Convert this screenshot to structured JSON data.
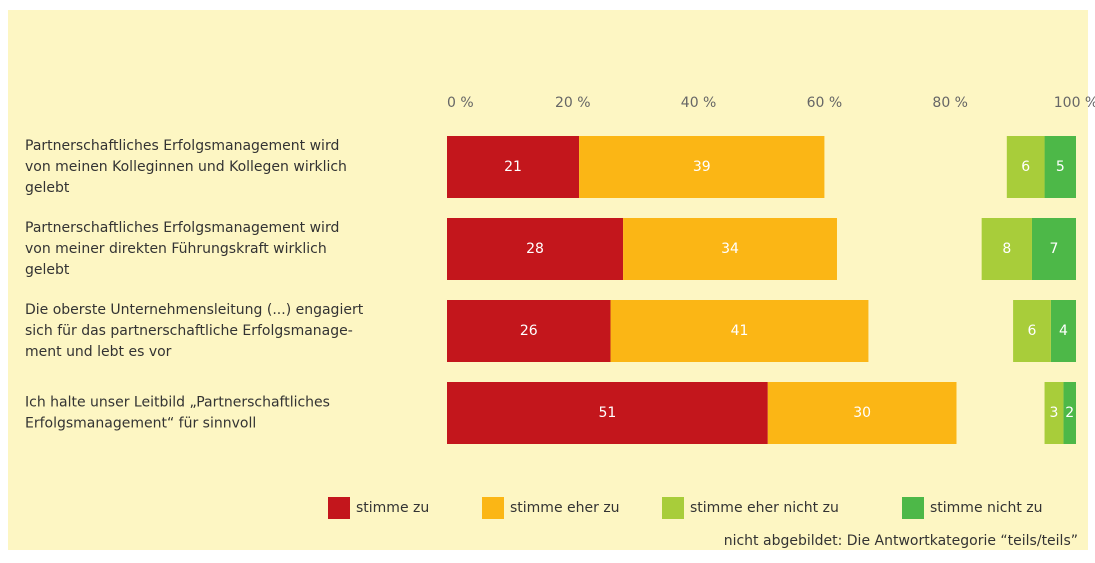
{
  "chart_data": {
    "type": "bar",
    "orientation": "horizontal",
    "stacked": true,
    "categories": [
      [
        "Partnerschaftliches Erfolgsmanagement wird",
        "von meinen Kolleginnen und Kollegen wirklich",
        "gelebt"
      ],
      [
        "Partnerschaftliches Erfolgsmanagement wird",
        "von meiner direkten Führungskraft wirklich",
        "gelebt"
      ],
      [
        "Die oberste Unternehmensleitung (...) engagiert",
        "sich für das partnerschaftliche Erfolgsmanage-",
        "ment und lebt es vor"
      ],
      [
        "Ich halte unser Leitbild „Partnerschaftliches",
        "Erfolgsmanagement“ für sinnvoll"
      ]
    ],
    "series": [
      {
        "name": "stimme zu",
        "color": "#c3161c",
        "anchor": "start",
        "values": [
          21,
          28,
          26,
          51
        ]
      },
      {
        "name": "stimme eher zu",
        "color": "#fbb615",
        "anchor": "start",
        "values": [
          39,
          34,
          41,
          30
        ]
      },
      {
        "name": "stimme eher nicht zu",
        "color": "#a8cd3a",
        "anchor": "end",
        "values": [
          6,
          8,
          6,
          3
        ]
      },
      {
        "name": "stimme nicht zu",
        "color": "#4db848",
        "anchor": "end",
        "values": [
          5,
          7,
          4,
          2
        ]
      }
    ],
    "xlim": [
      0,
      100
    ],
    "xticks": [
      {
        "value": 0,
        "label": "0 %"
      },
      {
        "value": 20,
        "label": "20 %"
      },
      {
        "value": 40,
        "label": "40 %"
      },
      {
        "value": 60,
        "label": "60 %"
      },
      {
        "value": 80,
        "label": "80 %"
      },
      {
        "value": 100,
        "label": "100 %"
      }
    ],
    "note": "nicht abgebildet: Die Antwortkategorie “teils/teils”"
  }
}
